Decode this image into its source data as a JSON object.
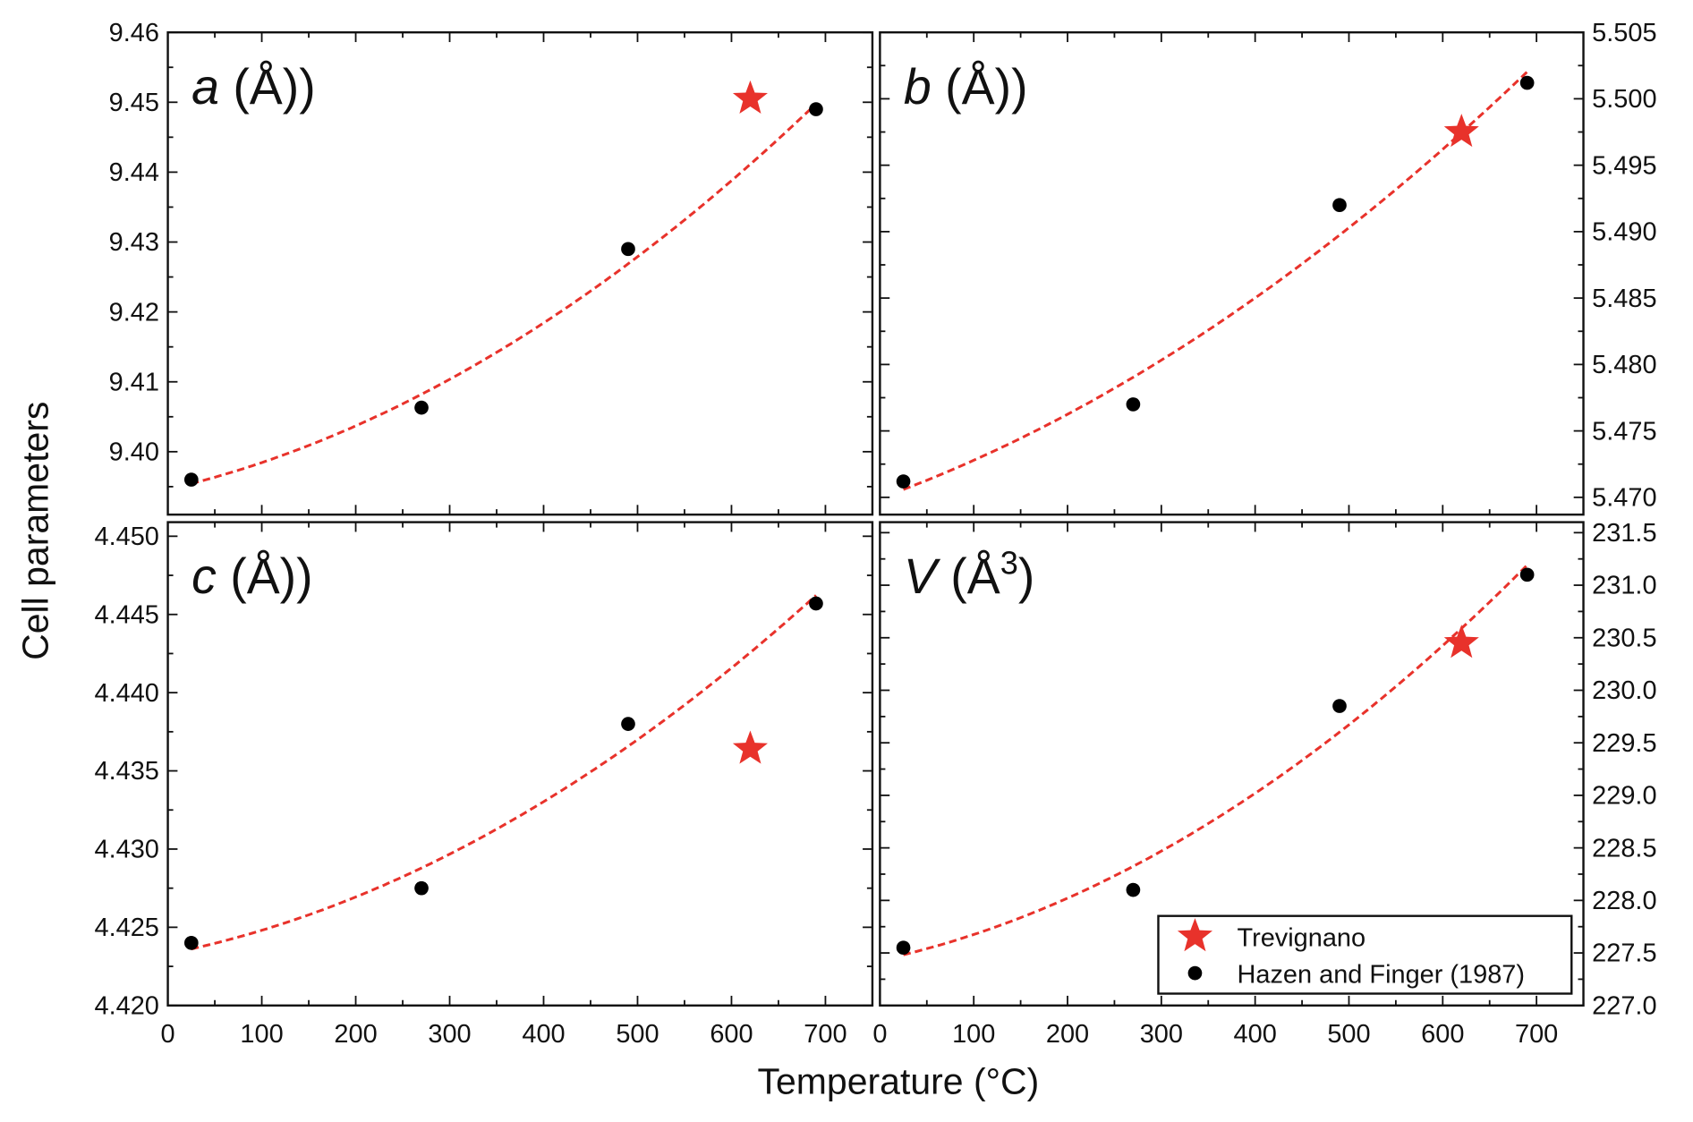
{
  "chart_data": [
    {
      "id": "a",
      "type": "scatter",
      "panel_label": {
        "symbol": "a",
        "unit": " (Å)",
        "sup": ""
      },
      "x": [
        25,
        270,
        490,
        690
      ],
      "values": [
        9.396,
        9.4063,
        9.429,
        9.449
      ],
      "star": {
        "x": 620,
        "y": 9.4505
      },
      "xlim": [
        0,
        750
      ],
      "ylim": [
        9.391,
        9.46
      ],
      "yticks": [
        9.4,
        9.41,
        9.42,
        9.43,
        9.44,
        9.45,
        9.46
      ],
      "ytick_decimals": 2,
      "yaxis_side": "left"
    },
    {
      "id": "b",
      "type": "scatter",
      "panel_label": {
        "symbol": "b",
        "unit": " (Å)",
        "sup": ""
      },
      "x": [
        25,
        270,
        490,
        690
      ],
      "values": [
        5.4712,
        5.477,
        5.492,
        5.5012
      ],
      "star": {
        "x": 620,
        "y": 5.4975
      },
      "xlim": [
        0,
        750
      ],
      "ylim": [
        5.4687,
        5.505
      ],
      "yticks": [
        5.47,
        5.475,
        5.48,
        5.485,
        5.49,
        5.495,
        5.5,
        5.505
      ],
      "ytick_decimals": 3,
      "yaxis_side": "right"
    },
    {
      "id": "c",
      "type": "scatter",
      "panel_label": {
        "symbol": "c",
        "unit": " (Å)",
        "sup": ""
      },
      "x": [
        25,
        270,
        490,
        690
      ],
      "values": [
        4.424,
        4.4275,
        4.438,
        4.4457
      ],
      "star": {
        "x": 620,
        "y": 4.4364
      },
      "xlim": [
        0,
        750
      ],
      "ylim": [
        4.42,
        4.4509
      ],
      "yticks": [
        4.42,
        4.425,
        4.43,
        4.435,
        4.44,
        4.445,
        4.45
      ],
      "ytick_decimals": 3,
      "yaxis_side": "left"
    },
    {
      "id": "V",
      "type": "scatter",
      "panel_label": {
        "symbol": "V",
        "unit": " (Å",
        "sup": "3"
      },
      "x": [
        25,
        270,
        490,
        690
      ],
      "values": [
        227.55,
        228.1,
        229.85,
        231.1
      ],
      "star": {
        "x": 620,
        "y": 230.45
      },
      "xlim": [
        0,
        750
      ],
      "ylim": [
        227.0,
        231.6
      ],
      "yticks": [
        227.0,
        227.5,
        228.0,
        228.5,
        229.0,
        229.5,
        230.0,
        230.5,
        231.0,
        231.5
      ],
      "ytick_decimals": 1,
      "yaxis_side": "right"
    }
  ],
  "xticks": [
    0,
    100,
    200,
    300,
    400,
    500,
    600,
    700
  ],
  "xlabel": "Temperature (°C)",
  "ylabel": "Cell parameters",
  "legend": {
    "placement": "bottom-right of V panel",
    "entries": [
      {
        "name": "Trevignano",
        "marker": "star",
        "color": "#e8322b"
      },
      {
        "name": "Hazen and Finger (1987)",
        "marker": "circle",
        "color": "#000000"
      }
    ]
  },
  "fit": {
    "style": "dashed",
    "color": "#e8322b",
    "kind": "quadratic fit"
  },
  "colors": {
    "star": "#e8322b",
    "points": "#000000",
    "fit": "#e8322b"
  }
}
